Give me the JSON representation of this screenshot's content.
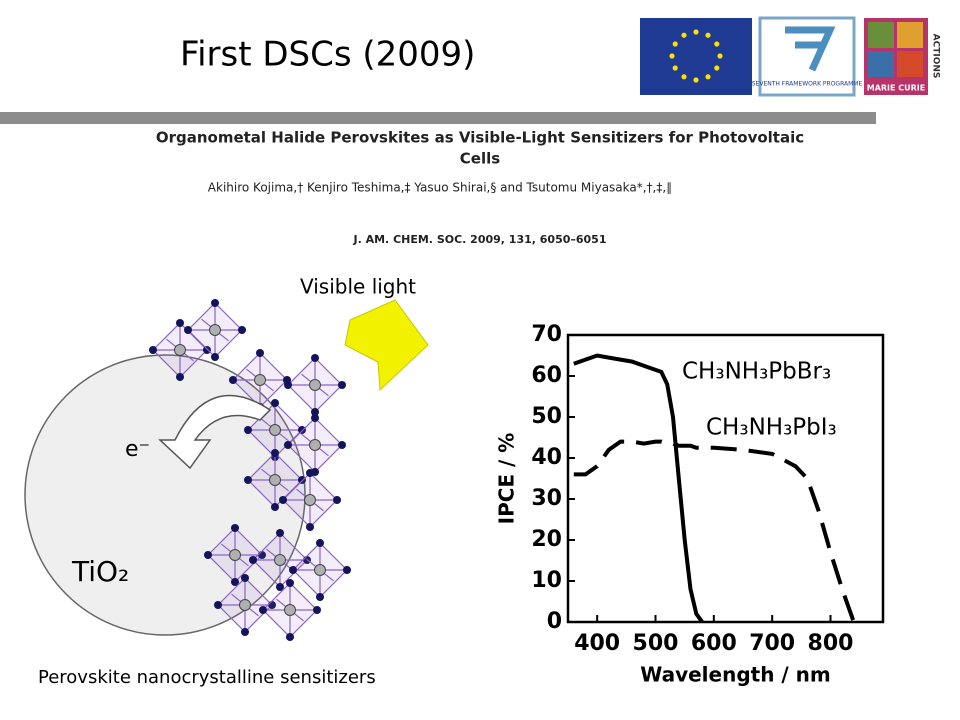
{
  "title": "First DSCs (2009)",
  "logos": {
    "fp7": "SEVENTH FRAMEWORK PROGRAMME",
    "marie_curie": "MARIE CURIE",
    "actions": "ACTIONS"
  },
  "paper": {
    "title_line1": "Organometal Halide Perovskites as Visible-Light Sensitizers for Photovoltaic",
    "title_line2": "Cells",
    "authors": "Akihiro Kojima,† Kenjiro Teshima,‡ Yasuo Shirai,§ and Tsutomu Miyasaka*,†,‡,∥",
    "citation": "J. AM. CHEM. SOC. 2009, 131, 6050–6051"
  },
  "figure": {
    "light_label": "Visible light",
    "electron_label": "e⁻",
    "tio2_label": "TiO₂",
    "caption": "Perovskite nanocrystalline sensitizers"
  },
  "chart_data": {
    "type": "line",
    "xlabel": "Wavelength / nm",
    "ylabel": "IPCE / %",
    "x": [
      360,
      380,
      400,
      420,
      440,
      460,
      480,
      500,
      510,
      520,
      530,
      540,
      550,
      560,
      570,
      580,
      600,
      650,
      700,
      740,
      760,
      780,
      800,
      820,
      840
    ],
    "series": [
      {
        "name": "CH₃NH₃PbBr₃",
        "color": "#000000",
        "dash": "solid",
        "values": [
          63,
          64,
          65,
          64.5,
          64,
          63.5,
          62.5,
          61.5,
          61,
          58,
          50,
          35,
          20,
          8,
          2,
          0,
          null,
          null,
          null,
          null,
          null,
          null,
          null,
          null,
          null
        ]
      },
      {
        "name": "CH₃NH₃PbI₃",
        "color": "#000000",
        "dash": "dashed",
        "values": [
          36,
          36,
          38,
          42,
          44,
          44,
          43.5,
          44,
          44,
          43.5,
          43.5,
          43,
          43,
          43,
          42.5,
          42.5,
          42.5,
          42,
          41,
          38,
          35,
          27,
          17,
          8,
          0
        ]
      }
    ],
    "xlim": [
      350,
      890
    ],
    "ylim": [
      0,
      70
    ],
    "xticks": [
      400,
      500,
      600,
      700,
      800
    ],
    "yticks": [
      0,
      10,
      20,
      30,
      40,
      50,
      60,
      70
    ]
  }
}
